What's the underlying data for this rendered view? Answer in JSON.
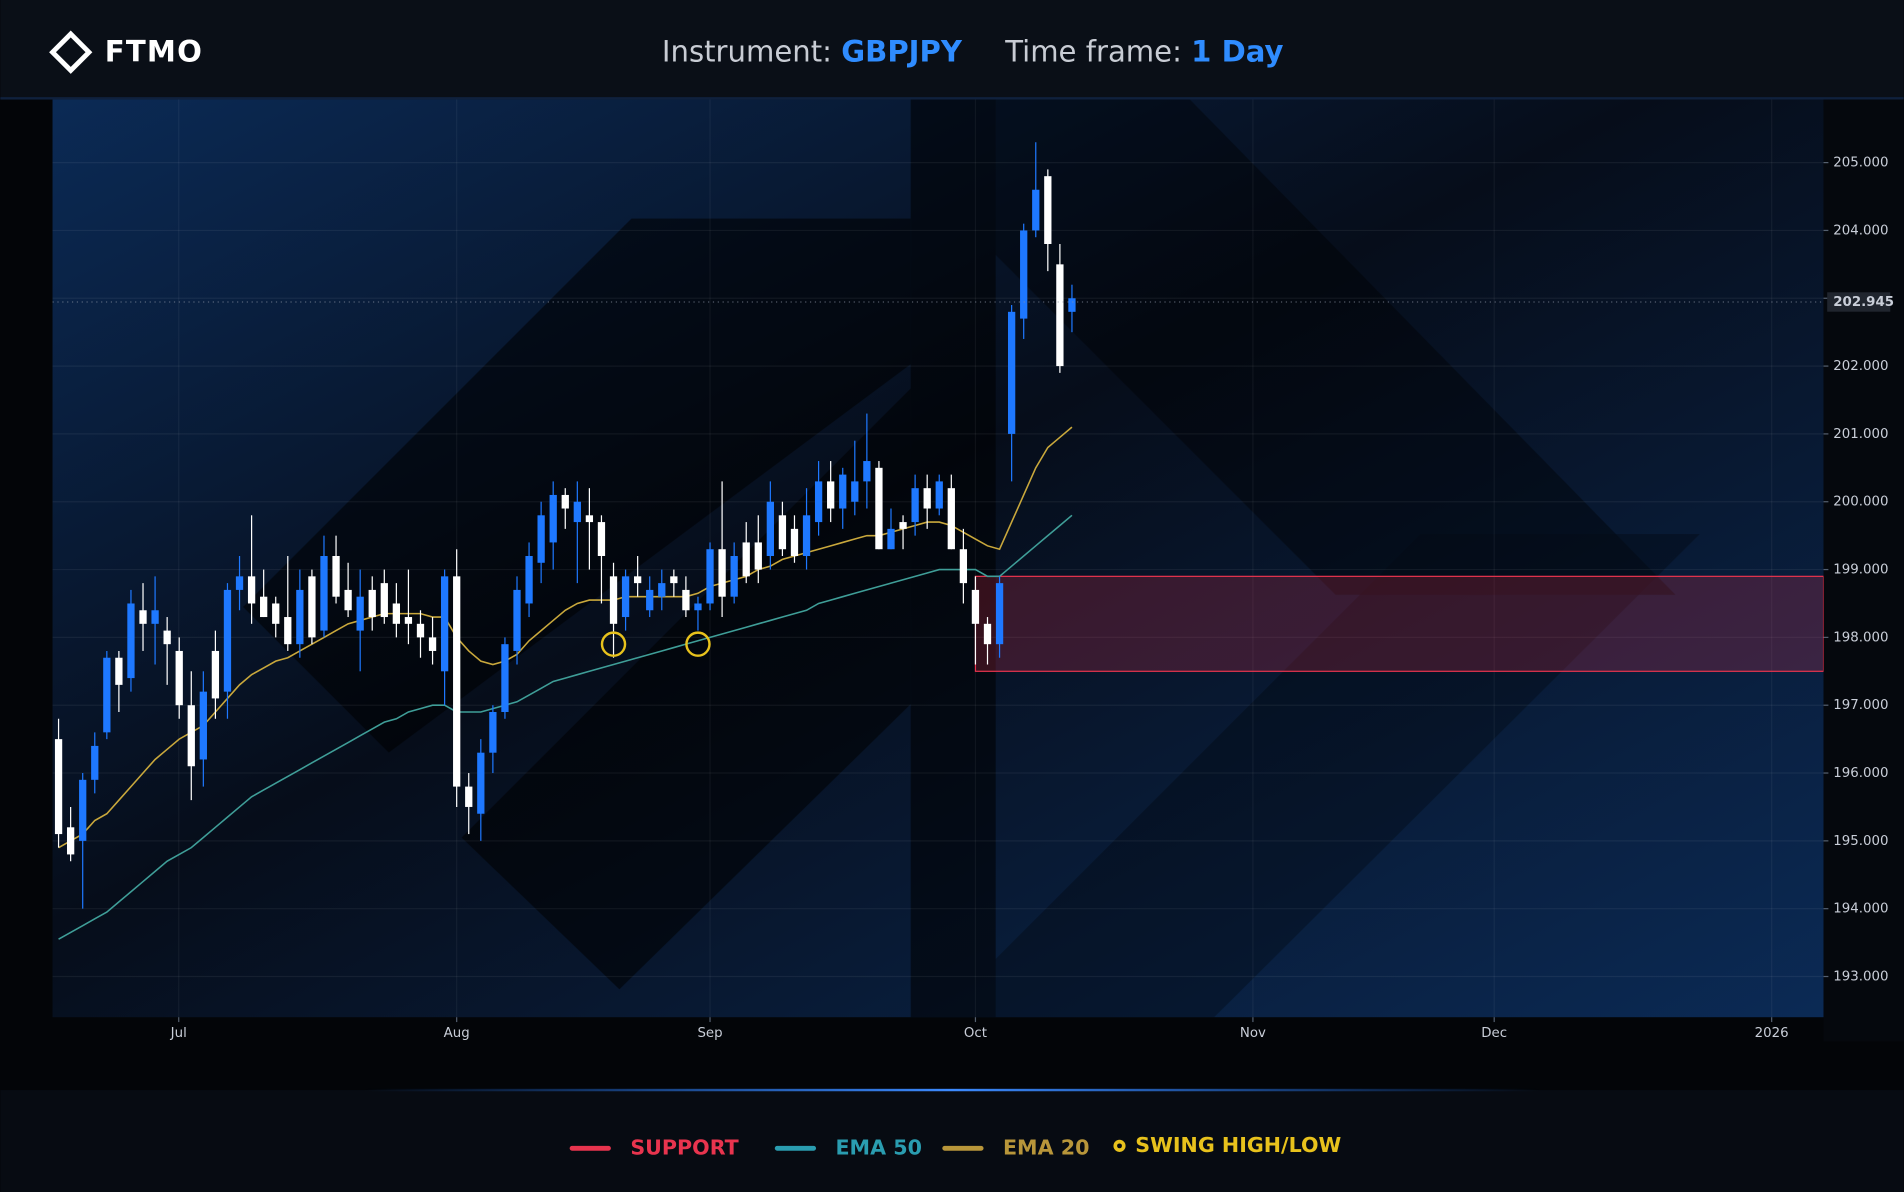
{
  "header": {
    "logo": "FTMO",
    "instrument_label": "Instrument:",
    "instrument": "GBPJPY",
    "timeframe_label": "Time frame:",
    "timeframe": "1 Day"
  },
  "chart_data": {
    "type": "candlestick",
    "x": [
      0,
      1,
      2,
      3,
      4,
      5,
      6,
      7,
      8,
      9,
      10,
      11,
      12,
      13,
      14,
      15,
      16,
      17,
      18,
      19,
      20,
      21,
      22,
      23,
      24,
      25,
      26,
      27,
      28,
      29,
      30,
      31,
      32,
      33,
      34,
      35,
      36,
      37,
      38,
      39,
      40,
      41,
      42,
      43,
      44,
      45,
      46,
      47,
      48,
      49,
      50,
      51,
      52,
      53,
      54,
      55,
      56,
      57,
      58,
      59,
      60,
      61,
      62,
      63,
      64,
      65,
      66,
      67,
      68,
      69,
      70,
      71,
      72,
      73,
      74,
      75,
      76,
      77,
      78,
      79,
      80,
      81,
      82,
      83,
      84
    ],
    "xlim": [
      -0.5,
      146.3
    ],
    "xticks": [
      {
        "value": 9.96,
        "label": "Jul"
      },
      {
        "value": 33.0,
        "label": "Aug"
      },
      {
        "value": 54.0,
        "label": "Sep"
      },
      {
        "value": 76.0,
        "label": "Oct"
      },
      {
        "value": 99.0,
        "label": "Nov"
      },
      {
        "value": 119.0,
        "label": "Dec"
      },
      {
        "value": 142.0,
        "label": "2026"
      }
    ],
    "ylim": [
      192.4,
      205.93
    ],
    "yticks": [
      {
        "value": 193,
        "label": "193.000"
      },
      {
        "value": 194,
        "label": "194.000"
      },
      {
        "value": 195,
        "label": "195.000"
      },
      {
        "value": 196,
        "label": "196.000"
      },
      {
        "value": 197,
        "label": "197.000"
      },
      {
        "value": 198,
        "label": "198.000"
      },
      {
        "value": 199,
        "label": "199.000"
      },
      {
        "value": 200,
        "label": "200.000"
      },
      {
        "value": 201,
        "label": "201.000"
      },
      {
        "value": 202,
        "label": "202.000"
      },
      {
        "value": 203,
        "label": "203.000"
      },
      {
        "value": 204,
        "label": "204.000"
      },
      {
        "value": 205,
        "label": "205.000"
      }
    ],
    "grid": true,
    "candles": {
      "up_color": "#1e78ff",
      "down_color": "#ffffff",
      "open": [
        196.5,
        195.2,
        195.0,
        195.9,
        196.6,
        197.7,
        197.4,
        198.4,
        198.2,
        198.1,
        197.8,
        197.0,
        196.2,
        197.8,
        197.2,
        198.7,
        198.9,
        198.6,
        198.5,
        198.3,
        197.9,
        198.9,
        198.1,
        199.2,
        198.7,
        198.1,
        198.7,
        198.8,
        198.5,
        198.3,
        198.2,
        198.0,
        197.5,
        198.9,
        195.8,
        195.4,
        196.3,
        196.9,
        197.8,
        198.5,
        199.1,
        199.4,
        200.1,
        199.7,
        199.8,
        199.7,
        198.9,
        198.3,
        198.9,
        198.4,
        198.6,
        198.9,
        198.7,
        198.4,
        198.5,
        199.3,
        198.6,
        199.4,
        199.4,
        199.2,
        199.8,
        199.6,
        199.2,
        199.7,
        200.3,
        199.9,
        200.0,
        200.3,
        200.5,
        199.3,
        199.7,
        199.7,
        200.2,
        199.9,
        200.2,
        199.3,
        198.7,
        198.2,
        197.9,
        201.0,
        202.7,
        204.0,
        204.8,
        203.5,
        202.8
      ],
      "high": [
        196.8,
        195.5,
        196.0,
        196.6,
        197.8,
        197.8,
        198.7,
        198.8,
        198.9,
        198.3,
        198.0,
        197.5,
        197.5,
        198.1,
        198.8,
        199.2,
        199.8,
        199.0,
        198.6,
        199.2,
        199.0,
        199.0,
        199.5,
        199.5,
        199.1,
        199.0,
        198.9,
        199.0,
        198.8,
        199.0,
        198.4,
        198.3,
        199.0,
        199.3,
        196.0,
        196.5,
        197.0,
        198.0,
        198.9,
        199.4,
        200.0,
        200.3,
        200.2,
        200.3,
        200.2,
        199.8,
        199.1,
        199.0,
        199.2,
        198.9,
        199.0,
        199.0,
        198.9,
        198.6,
        199.4,
        200.3,
        199.4,
        199.7,
        199.8,
        200.3,
        200.0,
        199.8,
        200.2,
        200.6,
        200.6,
        200.5,
        200.9,
        201.3,
        200.6,
        199.9,
        199.8,
        200.4,
        200.4,
        200.4,
        200.4,
        199.6,
        198.9,
        198.3,
        198.9,
        202.9,
        204.1,
        205.3,
        204.9,
        203.8,
        203.2
      ],
      "low": [
        194.9,
        194.7,
        194.0,
        195.7,
        196.5,
        196.9,
        197.2,
        197.8,
        197.6,
        197.3,
        196.8,
        195.6,
        195.8,
        196.8,
        196.8,
        198.4,
        198.2,
        198.3,
        198.0,
        197.8,
        197.7,
        197.9,
        198.0,
        198.5,
        198.3,
        197.5,
        198.1,
        198.2,
        198.0,
        197.9,
        197.7,
        197.6,
        197.0,
        195.5,
        195.1,
        195.0,
        196.0,
        196.8,
        197.6,
        198.3,
        198.8,
        199.0,
        199.6,
        198.8,
        199.0,
        198.5,
        197.7,
        198.1,
        198.6,
        198.3,
        198.4,
        198.6,
        198.3,
        198.1,
        198.4,
        198.3,
        198.5,
        198.8,
        198.8,
        199.0,
        199.2,
        199.1,
        199.0,
        199.5,
        199.7,
        199.6,
        199.8,
        199.9,
        199.3,
        199.3,
        199.3,
        199.5,
        199.6,
        199.8,
        199.3,
        198.5,
        197.6,
        197.6,
        197.7,
        200.3,
        202.4,
        203.9,
        203.4,
        201.9,
        202.5
      ],
      "close": [
        195.1,
        194.8,
        195.9,
        196.4,
        197.7,
        197.3,
        198.5,
        198.2,
        198.4,
        197.9,
        197.0,
        196.1,
        197.2,
        197.1,
        198.7,
        198.9,
        198.5,
        198.3,
        198.2,
        197.9,
        198.7,
        198.0,
        199.2,
        198.6,
        198.4,
        198.6,
        198.3,
        198.3,
        198.2,
        198.2,
        198.0,
        197.8,
        198.9,
        195.8,
        195.5,
        196.3,
        196.9,
        197.9,
        198.7,
        199.2,
        199.8,
        200.1,
        199.9,
        200.0,
        199.7,
        199.2,
        198.2,
        198.9,
        198.8,
        198.7,
        198.8,
        198.8,
        198.4,
        198.5,
        199.3,
        198.6,
        199.2,
        198.9,
        199.0,
        200.0,
        199.3,
        199.2,
        199.8,
        200.3,
        199.9,
        200.4,
        200.3,
        200.6,
        199.3,
        199.6,
        199.6,
        200.2,
        199.9,
        200.3,
        199.3,
        198.8,
        198.2,
        197.9,
        198.8,
        202.8,
        204.0,
        204.6,
        203.8,
        202.0,
        203.0
      ]
    },
    "series": [
      {
        "name": "EMA 50",
        "color": "#2a9db0",
        "line_color": "#3f9e98",
        "values": [
          193.55,
          193.65,
          193.75,
          193.85,
          193.95,
          194.1,
          194.25,
          194.4,
          194.55,
          194.7,
          194.8,
          194.9,
          195.05,
          195.2,
          195.35,
          195.5,
          195.65,
          195.75,
          195.85,
          195.95,
          196.05,
          196.15,
          196.25,
          196.35,
          196.45,
          196.55,
          196.65,
          196.75,
          196.8,
          196.9,
          196.95,
          197.0,
          197.0,
          196.9,
          196.9,
          196.9,
          196.95,
          197.0,
          197.05,
          197.15,
          197.25,
          197.35,
          197.4,
          197.45,
          197.5,
          197.55,
          197.6,
          197.65,
          197.7,
          197.75,
          197.8,
          197.85,
          197.9,
          197.95,
          198.0,
          198.05,
          198.1,
          198.15,
          198.2,
          198.25,
          198.3,
          198.35,
          198.4,
          198.5,
          198.55,
          198.6,
          198.65,
          198.7,
          198.75,
          198.8,
          198.85,
          198.9,
          198.95,
          199.0,
          199.0,
          199.0,
          199.0,
          198.9,
          198.9,
          199.05,
          199.2,
          199.35,
          199.5,
          199.65,
          199.8
        ]
      },
      {
        "name": "EMA 20",
        "color": "#b8963a",
        "line_color": "#c9a83c",
        "values": [
          194.9,
          195.0,
          195.1,
          195.3,
          195.4,
          195.6,
          195.8,
          196.0,
          196.2,
          196.35,
          196.5,
          196.6,
          196.7,
          196.9,
          197.1,
          197.3,
          197.45,
          197.55,
          197.65,
          197.7,
          197.8,
          197.9,
          198.0,
          198.1,
          198.2,
          198.25,
          198.3,
          198.35,
          198.35,
          198.35,
          198.35,
          198.3,
          198.3,
          198.0,
          197.8,
          197.65,
          197.6,
          197.65,
          197.75,
          197.95,
          198.1,
          198.25,
          198.4,
          198.5,
          198.55,
          198.55,
          198.55,
          198.6,
          198.6,
          198.6,
          198.6,
          198.6,
          198.6,
          198.65,
          198.75,
          198.8,
          198.85,
          198.9,
          199.0,
          199.05,
          199.15,
          199.2,
          199.25,
          199.3,
          199.35,
          199.4,
          199.45,
          199.5,
          199.5,
          199.55,
          199.6,
          199.65,
          199.7,
          199.7,
          199.65,
          199.55,
          199.45,
          199.35,
          199.3,
          199.7,
          200.1,
          200.5,
          200.8,
          200.95,
          201.1
        ]
      }
    ],
    "zone": {
      "name": "SUPPORT",
      "color": "#e8344e",
      "x_start": 76,
      "low": 197.5,
      "high": 198.9
    },
    "markers": {
      "name": "SWING HIGH/LOW",
      "color": "#e8c21c",
      "x": [
        46,
        53
      ],
      "values": [
        197.9,
        197.9
      ]
    },
    "last_price": {
      "value": 202.945,
      "label": "202.945"
    }
  }
}
